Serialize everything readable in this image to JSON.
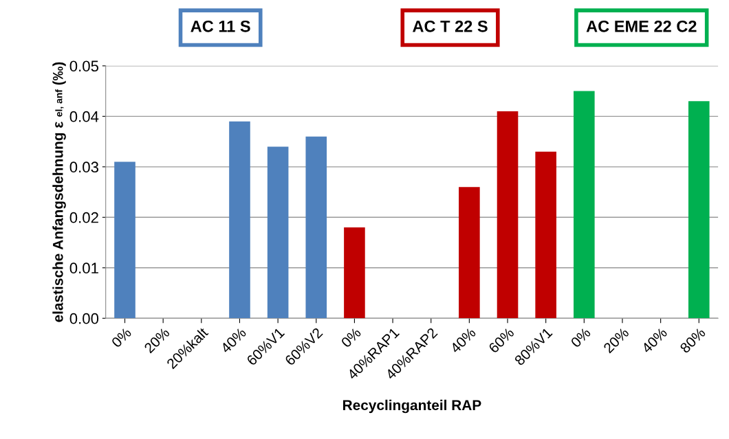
{
  "chart_data": {
    "type": "bar",
    "xlabel": "Recyclinganteil RAP",
    "ylabel": "elastische Anfangsdehnung ε $_{el, anf}$ (‰)",
    "categories": [
      "0%",
      "20%",
      "20%kalt",
      "40%",
      "60%V1",
      "60%V2",
      "0%",
      "40%RAP1",
      "40%RAP2",
      "40%",
      "60%",
      "80%V1",
      "0%",
      "20%",
      "40%",
      "80%"
    ],
    "series": [
      {
        "name": "AC 11 S",
        "color": "#4f81bd",
        "values": [
          0.031,
          null,
          null,
          0.039,
          0.034,
          0.036,
          null,
          null,
          null,
          null,
          null,
          null,
          null,
          null,
          null,
          null
        ]
      },
      {
        "name": "AC T 22 S",
        "color": "#c00000",
        "values": [
          null,
          null,
          null,
          null,
          null,
          null,
          0.018,
          null,
          null,
          0.026,
          0.041,
          0.033,
          null,
          null,
          null,
          null
        ]
      },
      {
        "name": "AC EME 22 C2",
        "color": "#00b050",
        "values": [
          null,
          null,
          null,
          null,
          null,
          null,
          null,
          null,
          null,
          null,
          null,
          null,
          0.045,
          null,
          null,
          0.043
        ]
      }
    ],
    "ylim": [
      0,
      0.05
    ],
    "yticks": [
      {
        "value": 0,
        "label": "0.00"
      },
      {
        "value": 0.01,
        "label": "0.01"
      },
      {
        "value": 0.02,
        "label": "0.02"
      },
      {
        "value": 0.03,
        "label": "0.03"
      },
      {
        "value": 0.04,
        "label": "0.04"
      },
      {
        "value": 0.05,
        "label": "0.05"
      }
    ],
    "grid": "y",
    "legend": "top"
  }
}
